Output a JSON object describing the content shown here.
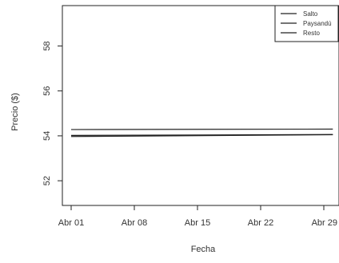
{
  "chart_data": {
    "type": "line",
    "title": "",
    "xlabel": "Fecha",
    "ylabel": "Precio ($)",
    "x_ticks": [
      "Abr 01",
      "Abr 08",
      "Abr 15",
      "Abr 22",
      "Abr 29"
    ],
    "y_ticks": [
      52,
      54,
      56,
      58
    ],
    "xlim": [
      "Abr 01",
      "Abr 30"
    ],
    "ylim": [
      50.9,
      59.8
    ],
    "grid": false,
    "legend_position": "top-right",
    "series": [
      {
        "name": "Salto",
        "x": [
          "Abr 01",
          "Abr 30"
        ],
        "y": [
          53.97,
          54.05
        ]
      },
      {
        "name": "Paysandú",
        "x": [
          "Abr 01",
          "Abr 30"
        ],
        "y": [
          54.28,
          54.3
        ]
      },
      {
        "name": "Resto",
        "x": [
          "Abr 01",
          "Abr 30"
        ],
        "y": [
          54.02,
          54.06
        ]
      }
    ]
  }
}
